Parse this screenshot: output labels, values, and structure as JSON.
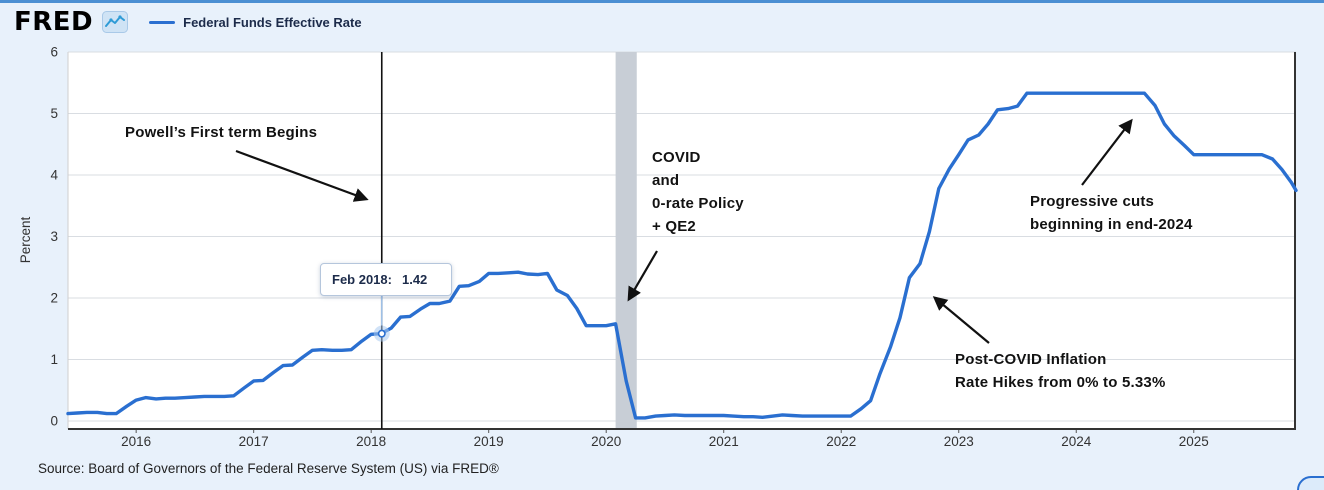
{
  "header": {
    "logo_text": "FRED",
    "legend": {
      "series_label": "Federal Funds Effective Rate",
      "series_color": "#2a6fd0"
    }
  },
  "chart_data": {
    "type": "line",
    "title": "Federal Funds Effective Rate",
    "ylabel": "Percent",
    "xlabel": "",
    "ylim": [
      0,
      6
    ],
    "xlim": [
      2015.42,
      2025.87
    ],
    "y_ticks": [
      0,
      1,
      2,
      3,
      4,
      5,
      6
    ],
    "x_ticks": [
      2016,
      2017,
      2018,
      2019,
      2020,
      2021,
      2022,
      2023,
      2024,
      2025
    ],
    "grid": true,
    "legend_position": "top-left",
    "recession_band": {
      "x_start": 2020.08,
      "x_end": 2020.26,
      "color": "#c8ced6"
    },
    "event_line": {
      "x": 2018.09,
      "color": "#111111"
    },
    "tooltip": {
      "date_label": "Feb 2018:",
      "value": "1.42",
      "x": 2018.09,
      "y": 1.42
    },
    "series": [
      {
        "name": "Federal Funds Effective Rate",
        "color": "#2a6fd0",
        "points": [
          [
            2015.42,
            0.12
          ],
          [
            2015.5,
            0.13
          ],
          [
            2015.58,
            0.14
          ],
          [
            2015.67,
            0.14
          ],
          [
            2015.75,
            0.12
          ],
          [
            2015.83,
            0.12
          ],
          [
            2015.92,
            0.24
          ],
          [
            2016,
            0.34
          ],
          [
            2016.08,
            0.38
          ],
          [
            2016.17,
            0.36
          ],
          [
            2016.25,
            0.37
          ],
          [
            2016.33,
            0.37
          ],
          [
            2016.42,
            0.38
          ],
          [
            2016.5,
            0.39
          ],
          [
            2016.58,
            0.4
          ],
          [
            2016.67,
            0.4
          ],
          [
            2016.75,
            0.4
          ],
          [
            2016.83,
            0.41
          ],
          [
            2016.92,
            0.54
          ],
          [
            2017,
            0.65
          ],
          [
            2017.08,
            0.66
          ],
          [
            2017.17,
            0.79
          ],
          [
            2017.25,
            0.9
          ],
          [
            2017.33,
            0.91
          ],
          [
            2017.42,
            1.04
          ],
          [
            2017.5,
            1.15
          ],
          [
            2017.58,
            1.16
          ],
          [
            2017.67,
            1.15
          ],
          [
            2017.75,
            1.15
          ],
          [
            2017.83,
            1.16
          ],
          [
            2017.92,
            1.3
          ],
          [
            2018,
            1.41
          ],
          [
            2018.08,
            1.42
          ],
          [
            2018.17,
            1.51
          ],
          [
            2018.25,
            1.69
          ],
          [
            2018.33,
            1.7
          ],
          [
            2018.42,
            1.82
          ],
          [
            2018.5,
            1.91
          ],
          [
            2018.58,
            1.91
          ],
          [
            2018.67,
            1.95
          ],
          [
            2018.75,
            2.19
          ],
          [
            2018.83,
            2.2
          ],
          [
            2018.92,
            2.27
          ],
          [
            2019,
            2.4
          ],
          [
            2019.08,
            2.4
          ],
          [
            2019.17,
            2.41
          ],
          [
            2019.25,
            2.42
          ],
          [
            2019.33,
            2.39
          ],
          [
            2019.42,
            2.38
          ],
          [
            2019.5,
            2.4
          ],
          [
            2019.58,
            2.13
          ],
          [
            2019.67,
            2.04
          ],
          [
            2019.75,
            1.83
          ],
          [
            2019.83,
            1.55
          ],
          [
            2019.92,
            1.55
          ],
          [
            2020,
            1.55
          ],
          [
            2020.08,
            1.58
          ],
          [
            2020.17,
            0.65
          ],
          [
            2020.25,
            0.05
          ],
          [
            2020.33,
            0.05
          ],
          [
            2020.42,
            0.08
          ],
          [
            2020.5,
            0.09
          ],
          [
            2020.58,
            0.1
          ],
          [
            2020.67,
            0.09
          ],
          [
            2020.75,
            0.09
          ],
          [
            2020.83,
            0.09
          ],
          [
            2020.92,
            0.09
          ],
          [
            2021,
            0.09
          ],
          [
            2021.08,
            0.08
          ],
          [
            2021.17,
            0.07
          ],
          [
            2021.25,
            0.07
          ],
          [
            2021.33,
            0.06
          ],
          [
            2021.42,
            0.08
          ],
          [
            2021.5,
            0.1
          ],
          [
            2021.58,
            0.09
          ],
          [
            2021.67,
            0.08
          ],
          [
            2021.75,
            0.08
          ],
          [
            2021.83,
            0.08
          ],
          [
            2021.92,
            0.08
          ],
          [
            2022,
            0.08
          ],
          [
            2022.08,
            0.08
          ],
          [
            2022.17,
            0.2
          ],
          [
            2022.25,
            0.33
          ],
          [
            2022.33,
            0.77
          ],
          [
            2022.42,
            1.21
          ],
          [
            2022.5,
            1.68
          ],
          [
            2022.58,
            2.33
          ],
          [
            2022.67,
            2.56
          ],
          [
            2022.75,
            3.08
          ],
          [
            2022.83,
            3.78
          ],
          [
            2022.92,
            4.1
          ],
          [
            2023,
            4.33
          ],
          [
            2023.08,
            4.57
          ],
          [
            2023.17,
            4.65
          ],
          [
            2023.25,
            4.83
          ],
          [
            2023.33,
            5.06
          ],
          [
            2023.42,
            5.08
          ],
          [
            2023.5,
            5.12
          ],
          [
            2023.58,
            5.33
          ],
          [
            2023.67,
            5.33
          ],
          [
            2023.75,
            5.33
          ],
          [
            2023.83,
            5.33
          ],
          [
            2023.92,
            5.33
          ],
          [
            2024,
            5.33
          ],
          [
            2024.08,
            5.33
          ],
          [
            2024.17,
            5.33
          ],
          [
            2024.25,
            5.33
          ],
          [
            2024.33,
            5.33
          ],
          [
            2024.42,
            5.33
          ],
          [
            2024.5,
            5.33
          ],
          [
            2024.58,
            5.33
          ],
          [
            2024.67,
            5.13
          ],
          [
            2024.75,
            4.83
          ],
          [
            2024.83,
            4.64
          ],
          [
            2024.92,
            4.48
          ],
          [
            2025,
            4.33
          ],
          [
            2025.08,
            4.33
          ],
          [
            2025.17,
            4.33
          ],
          [
            2025.25,
            4.33
          ],
          [
            2025.33,
            4.33
          ],
          [
            2025.42,
            4.33
          ],
          [
            2025.5,
            4.33
          ],
          [
            2025.58,
            4.33
          ],
          [
            2025.67,
            4.26
          ],
          [
            2025.75,
            4.09
          ],
          [
            2025.83,
            3.88
          ],
          [
            2025.87,
            3.75
          ]
        ]
      }
    ],
    "annotations": {
      "powell": {
        "lines": [
          "Powell’s First term Begins"
        ]
      },
      "covid": {
        "lines": [
          "COVID",
          "and",
          "0-rate Policy",
          "+ QE2"
        ]
      },
      "progressive": {
        "lines": [
          "Progressive cuts",
          "beginning in end-2024"
        ]
      },
      "postcovid": {
        "lines": [
          "Post-COVID Inflation",
          "Rate Hikes from 0% to 5.33%"
        ]
      }
    }
  },
  "footer": {
    "source_text": "Source: Board of Governors of the Federal Reserve System (US) via FRED®"
  }
}
